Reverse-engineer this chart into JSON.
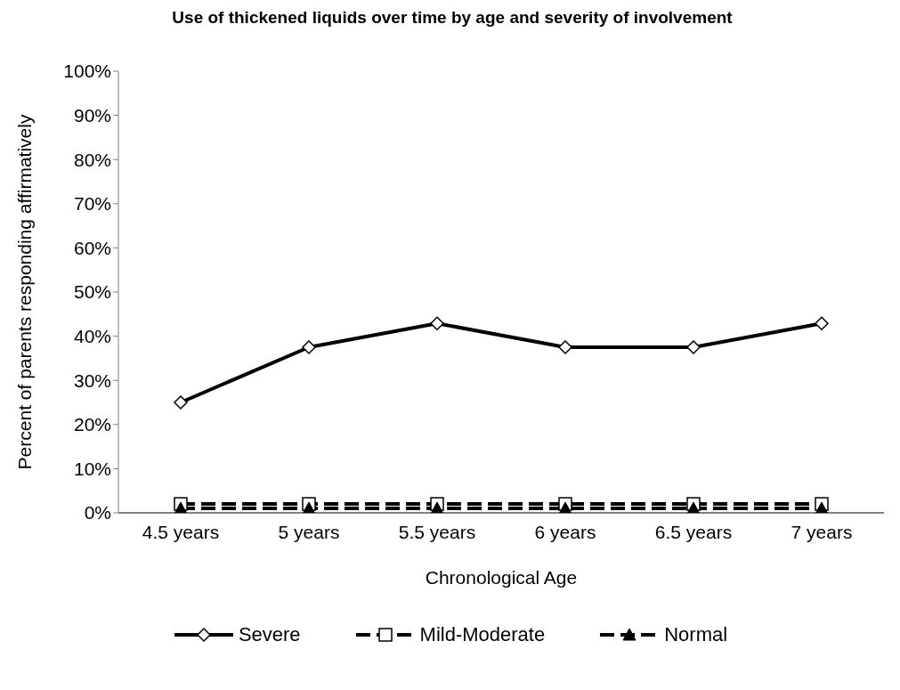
{
  "chart_data": {
    "type": "line",
    "title": "Use of thickened liquids over time by age and severity of involvement",
    "xlabel": "Chronological Age",
    "ylabel": "Percent of parents responding affirmatively",
    "categories": [
      "4.5 years",
      "5 years",
      "5.5 years",
      "6  years",
      "6.5 years",
      "7 years"
    ],
    "series": [
      {
        "name": "Severe",
        "color": "#000000",
        "marker": "diamond",
        "line_style": "solid",
        "values": [
          25,
          37.5,
          42.9,
          37.5,
          37.5,
          42.9
        ]
      },
      {
        "name": "Mild-Moderate",
        "color": "#000000",
        "marker": "square",
        "line_style": "dashed",
        "values": [
          2,
          2,
          2,
          2,
          2,
          2
        ]
      },
      {
        "name": "Normal",
        "color": "#000000",
        "marker": "triangle",
        "line_style": "dashed",
        "values": [
          1,
          1,
          1,
          1,
          1,
          1
        ]
      }
    ],
    "ylim": [
      0,
      100
    ],
    "yticks": [
      {
        "value": 0,
        "label": "0%"
      },
      {
        "value": 10,
        "label": "10%"
      },
      {
        "value": 20,
        "label": "20%"
      },
      {
        "value": 30,
        "label": "30%"
      },
      {
        "value": 40,
        "label": "40%"
      },
      {
        "value": 50,
        "label": "50%"
      },
      {
        "value": 60,
        "label": "60%"
      },
      {
        "value": 70,
        "label": "70%"
      },
      {
        "value": 80,
        "label": "80%"
      },
      {
        "value": 90,
        "label": "90%"
      },
      {
        "value": 100,
        "label": "100%"
      }
    ],
    "grid": false,
    "legend": "bottom"
  }
}
